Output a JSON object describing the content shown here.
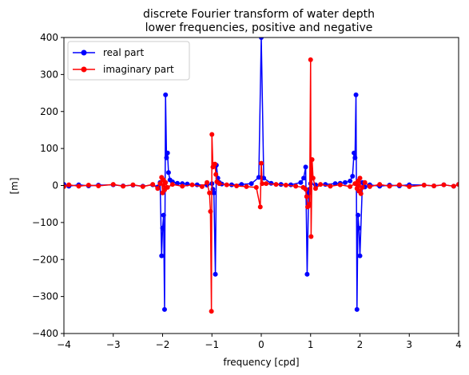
{
  "chart_data": {
    "type": "line",
    "title_line1": "discrete Fourier transform of water depth",
    "title_line2": "lower frequencies, positive and negative",
    "xlabel": "frequency [cpd]",
    "ylabel": "[m]",
    "xlim": [
      -4,
      4
    ],
    "ylim": [
      -400,
      400
    ],
    "xticks": [
      -4,
      -3,
      -2,
      -1,
      0,
      1,
      2,
      3,
      4
    ],
    "yticks": [
      -400,
      -300,
      -200,
      -100,
      0,
      100,
      200,
      300,
      400
    ],
    "xtick_labels": [
      "−4",
      "−3",
      "−2",
      "−1",
      "0",
      "1",
      "2",
      "3",
      "4"
    ],
    "ytick_labels": [
      "−400",
      "−300",
      "−200",
      "−100",
      "0",
      "100",
      "200",
      "300",
      "400"
    ],
    "legend_position": "upper left",
    "series": [
      {
        "name": "real part",
        "color": "#0000ff",
        "points": [
          [
            -4.0,
            3
          ],
          [
            -3.9,
            -2
          ],
          [
            -3.7,
            2
          ],
          [
            -3.5,
            -1
          ],
          [
            -3.3,
            1
          ],
          [
            -3.0,
            2
          ],
          [
            -2.8,
            -1
          ],
          [
            -2.6,
            1
          ],
          [
            -2.4,
            -2
          ],
          [
            -2.2,
            2
          ],
          [
            -2.1,
            -4
          ],
          [
            -2.05,
            8
          ],
          [
            -2.02,
            -190
          ],
          [
            -2.0,
            -115
          ],
          [
            -1.98,
            -80
          ],
          [
            -1.96,
            -335
          ],
          [
            -1.94,
            245
          ],
          [
            -1.92,
            75
          ],
          [
            -1.9,
            88
          ],
          [
            -1.88,
            35
          ],
          [
            -1.85,
            15
          ],
          [
            -1.8,
            10
          ],
          [
            -1.7,
            6
          ],
          [
            -1.6,
            5
          ],
          [
            -1.5,
            4
          ],
          [
            -1.3,
            2
          ],
          [
            -1.1,
            1
          ],
          [
            -1.0,
            5
          ],
          [
            -0.98,
            -10
          ],
          [
            -0.96,
            -20
          ],
          [
            -0.93,
            -240
          ],
          [
            -0.91,
            55
          ],
          [
            -0.88,
            20
          ],
          [
            -0.85,
            8
          ],
          [
            -0.8,
            4
          ],
          [
            -0.6,
            2
          ],
          [
            -0.4,
            3
          ],
          [
            -0.2,
            5
          ],
          [
            -0.05,
            22
          ],
          [
            0.0,
            400
          ],
          [
            0.05,
            20
          ],
          [
            0.2,
            6
          ],
          [
            0.4,
            3
          ],
          [
            0.6,
            2
          ],
          [
            0.8,
            8
          ],
          [
            0.86,
            20
          ],
          [
            0.9,
            50
          ],
          [
            0.93,
            -240
          ],
          [
            0.96,
            -20
          ],
          [
            0.98,
            -10
          ],
          [
            1.0,
            5
          ],
          [
            1.1,
            2
          ],
          [
            1.3,
            3
          ],
          [
            1.5,
            5
          ],
          [
            1.6,
            6
          ],
          [
            1.7,
            8
          ],
          [
            1.8,
            12
          ],
          [
            1.85,
            25
          ],
          [
            1.88,
            88
          ],
          [
            1.9,
            75
          ],
          [
            1.92,
            245
          ],
          [
            1.94,
            -335
          ],
          [
            1.96,
            -80
          ],
          [
            1.98,
            -115
          ],
          [
            2.0,
            -190
          ],
          [
            2.05,
            8
          ],
          [
            2.1,
            -4
          ],
          [
            2.2,
            2
          ],
          [
            2.4,
            -2
          ],
          [
            2.6,
            1
          ],
          [
            2.8,
            -1
          ],
          [
            3.0,
            2
          ],
          [
            3.3,
            1
          ],
          [
            3.5,
            -1
          ],
          [
            3.7,
            2
          ],
          [
            3.9,
            -2
          ],
          [
            4.0,
            3
          ]
        ]
      },
      {
        "name": "imaginary part",
        "color": "#ff0000",
        "points": [
          [
            -4.0,
            -3
          ],
          [
            -3.9,
            2
          ],
          [
            -3.7,
            -2
          ],
          [
            -3.5,
            1
          ],
          [
            -3.3,
            -1
          ],
          [
            -3.0,
            3
          ],
          [
            -2.8,
            -2
          ],
          [
            -2.6,
            2
          ],
          [
            -2.4,
            -3
          ],
          [
            -2.2,
            3
          ],
          [
            -2.1,
            -8
          ],
          [
            -2.05,
            5
          ],
          [
            -2.02,
            22
          ],
          [
            -2.0,
            -20
          ],
          [
            -1.98,
            15
          ],
          [
            -1.96,
            -12
          ],
          [
            -1.94,
            8
          ],
          [
            -1.9,
            -5
          ],
          [
            -1.8,
            3
          ],
          [
            -1.6,
            -2
          ],
          [
            -1.4,
            2
          ],
          [
            -1.2,
            -3
          ],
          [
            -1.1,
            8
          ],
          [
            -1.05,
            -20
          ],
          [
            -1.03,
            -70
          ],
          [
            -1.01,
            -340
          ],
          [
            -1.0,
            138
          ],
          [
            -0.98,
            50
          ],
          [
            -0.96,
            55
          ],
          [
            -0.94,
            58
          ],
          [
            -0.92,
            30
          ],
          [
            -0.9,
            10
          ],
          [
            -0.85,
            5
          ],
          [
            -0.7,
            2
          ],
          [
            -0.5,
            -1
          ],
          [
            -0.3,
            -3
          ],
          [
            -0.1,
            -5
          ],
          [
            -0.02,
            -58
          ],
          [
            0.0,
            60
          ],
          [
            0.02,
            5
          ],
          [
            0.1,
            5
          ],
          [
            0.3,
            3
          ],
          [
            0.5,
            1
          ],
          [
            0.7,
            -2
          ],
          [
            0.85,
            -5
          ],
          [
            0.9,
            -10
          ],
          [
            0.92,
            -30
          ],
          [
            0.94,
            -58
          ],
          [
            0.96,
            -55
          ],
          [
            0.98,
            -50
          ],
          [
            1.0,
            340
          ],
          [
            1.01,
            -138
          ],
          [
            1.03,
            70
          ],
          [
            1.05,
            20
          ],
          [
            1.1,
            -8
          ],
          [
            1.2,
            3
          ],
          [
            1.4,
            -2
          ],
          [
            1.6,
            2
          ],
          [
            1.8,
            -3
          ],
          [
            1.9,
            5
          ],
          [
            1.94,
            -8
          ],
          [
            1.96,
            12
          ],
          [
            1.98,
            -15
          ],
          [
            2.0,
            20
          ],
          [
            2.02,
            -22
          ],
          [
            2.05,
            -5
          ],
          [
            2.1,
            8
          ],
          [
            2.2,
            -3
          ],
          [
            2.4,
            3
          ],
          [
            2.6,
            -2
          ],
          [
            2.8,
            2
          ],
          [
            3.0,
            -3
          ],
          [
            3.3,
            1
          ],
          [
            3.5,
            -1
          ],
          [
            3.7,
            2
          ],
          [
            3.9,
            -2
          ],
          [
            4.0,
            3
          ]
        ]
      }
    ]
  }
}
